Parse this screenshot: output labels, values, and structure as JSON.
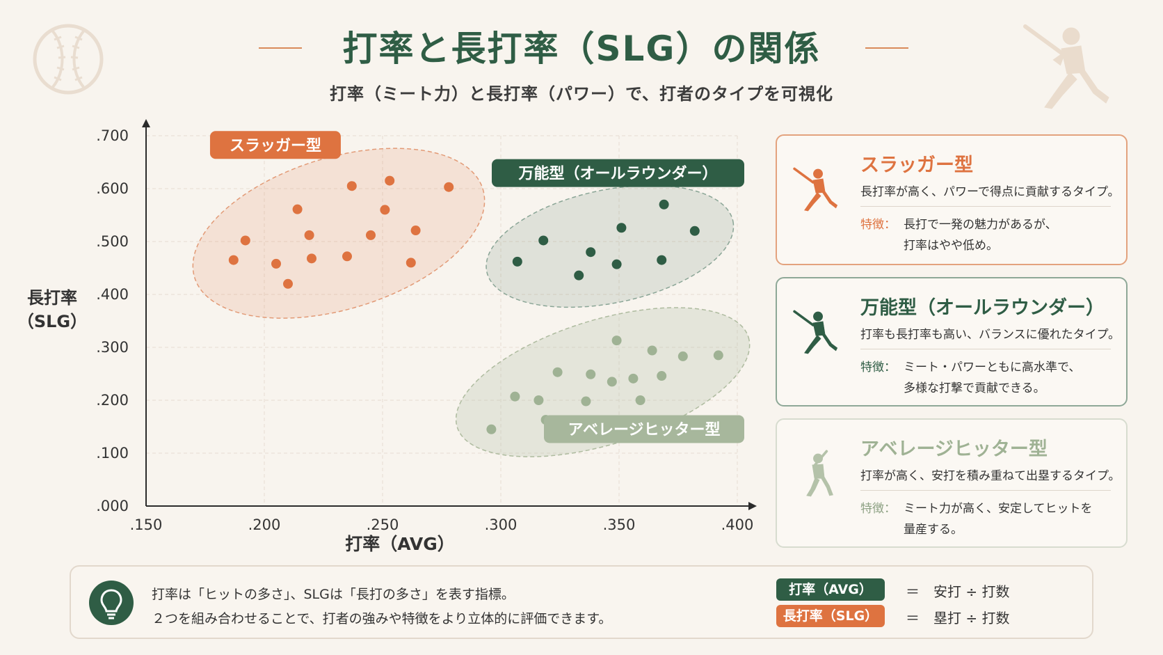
{
  "title": "打率と長打率（SLG）の関係",
  "subtitle": "打率（ミート力）と長打率（パワー）で、打者のタイプを可視化",
  "colors": {
    "slugger": "#de7340",
    "all_round": "#2f5d45",
    "average": "#9fb294",
    "background": "#f8f4ee"
  },
  "chart_data": {
    "type": "scatter",
    "xlabel": "打率（AVG）",
    "ylabel": "長打率\n（SLG）",
    "xlim": [
      0.15,
      0.4
    ],
    "ylim": [
      0.0,
      0.7
    ],
    "x_ticks": [
      ".150",
      ".200",
      ".250",
      ".300",
      ".350",
      ".400"
    ],
    "y_ticks": [
      ".000",
      ".100",
      ".200",
      ".300",
      ".400",
      ".500",
      ".600",
      ".700"
    ],
    "grid": true,
    "series": [
      {
        "name": "スラッガー型",
        "color": "#de7340",
        "points": [
          [
            0.187,
            0.465
          ],
          [
            0.192,
            0.502
          ],
          [
            0.205,
            0.458
          ],
          [
            0.21,
            0.42
          ],
          [
            0.214,
            0.561
          ],
          [
            0.219,
            0.512
          ],
          [
            0.22,
            0.468
          ],
          [
            0.235,
            0.472
          ],
          [
            0.237,
            0.605
          ],
          [
            0.245,
            0.512
          ],
          [
            0.251,
            0.56
          ],
          [
            0.253,
            0.615
          ],
          [
            0.262,
            0.46
          ],
          [
            0.264,
            0.521
          ],
          [
            0.278,
            0.603
          ]
        ]
      },
      {
        "name": "万能型（オールラウンダー）",
        "color": "#2f5d45",
        "points": [
          [
            0.307,
            0.462
          ],
          [
            0.318,
            0.502
          ],
          [
            0.333,
            0.436
          ],
          [
            0.338,
            0.48
          ],
          [
            0.349,
            0.457
          ],
          [
            0.351,
            0.526
          ],
          [
            0.368,
            0.465
          ],
          [
            0.369,
            0.57
          ],
          [
            0.382,
            0.52
          ]
        ]
      },
      {
        "name": "アベレージヒッター型",
        "color": "#9fb294",
        "points": [
          [
            0.296,
            0.145
          ],
          [
            0.306,
            0.207
          ],
          [
            0.316,
            0.2
          ],
          [
            0.319,
            0.163
          ],
          [
            0.324,
            0.253
          ],
          [
            0.336,
            0.198
          ],
          [
            0.338,
            0.249
          ],
          [
            0.347,
            0.235
          ],
          [
            0.349,
            0.313
          ],
          [
            0.356,
            0.241
          ],
          [
            0.359,
            0.2
          ],
          [
            0.364,
            0.294
          ],
          [
            0.368,
            0.246
          ],
          [
            0.377,
            0.283
          ],
          [
            0.392,
            0.285
          ]
        ]
      }
    ],
    "cluster_labels": [
      "スラッガー型",
      "万能型（オールラウンダー）",
      "アベレージヒッター型"
    ]
  },
  "cards": [
    {
      "title": "スラッガー型",
      "description": "長打率が高く、パワーで得点に貢献するタイプ。",
      "feature_key": "特徴：",
      "feature_line1": "長打で一発の魅力があるが、",
      "feature_line2": "打率はやや低め。",
      "color": "#de7340"
    },
    {
      "title": "万能型（オールラウンダー）",
      "description": "打率も長打率も高い、バランスに優れたタイプ。",
      "feature_key": "特徴：",
      "feature_line1": "ミート・パワーともに高水準で、",
      "feature_line2": "多様な打撃で貢献できる。",
      "color": "#2f5d45"
    },
    {
      "title": "アベレージヒッター型",
      "description": "打率が高く、安打を積み重ねて出塁するタイプ。",
      "feature_key": "特徴：",
      "feature_line1": "ミート力が高く、安定してヒットを",
      "feature_line2": "量産する。",
      "color": "#9fb294"
    }
  ],
  "footer": {
    "note_line1": "打率は「ヒットの多さ」、SLGは「長打の多さ」を表す指標。",
    "note_line2": "２つを組み合わせることで、打者の強みや特徴をより立体的に評価できます。",
    "avg_label": "打率（AVG）",
    "avg_formula": "＝　安打 ÷ 打数",
    "slg_label": "長打率（SLG）",
    "slg_formula": "＝　塁打 ÷ 打数"
  },
  "icons": {
    "decor_left": "baseball-icon",
    "decor_right": "batter-silhouette-icon",
    "card": "batter-silhouette-icon",
    "footer": "lightbulb-icon"
  }
}
